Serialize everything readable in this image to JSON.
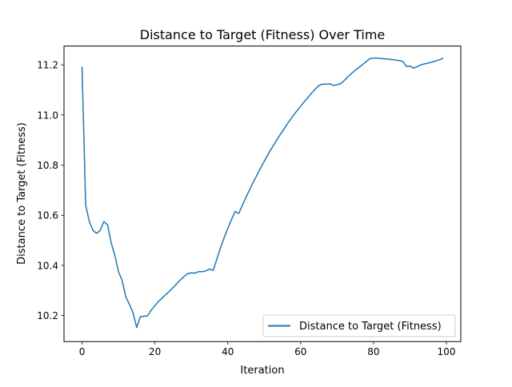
{
  "chart_data": {
    "type": "line",
    "title": "Distance to Target (Fitness) Over Time",
    "xlabel": "Iteration",
    "ylabel": "Distance to Target (Fitness)",
    "xlim": [
      -4.95,
      103.95
    ],
    "ylim": [
      10.096,
      11.275
    ],
    "xticks": [
      0,
      20,
      40,
      60,
      80,
      100
    ],
    "xtick_labels": [
      "0",
      "20",
      "40",
      "60",
      "80",
      "100"
    ],
    "yticks": [
      10.2,
      10.4,
      10.6,
      10.8,
      11.0,
      11.2
    ],
    "ytick_labels": [
      "10.2",
      "10.4",
      "10.6",
      "10.8",
      "11.0",
      "11.2"
    ],
    "grid": false,
    "legend_position": "lower-right",
    "series": [
      {
        "name": "Distance to Target (Fitness)",
        "color": "#1f77b4",
        "x": [
          0,
          1,
          2,
          3,
          4,
          5,
          6,
          7,
          8,
          9,
          10,
          11,
          12,
          13,
          14,
          15,
          16,
          17,
          18,
          19,
          20,
          21,
          22,
          23,
          24,
          25,
          26,
          27,
          28,
          29,
          30,
          31,
          32,
          33,
          34,
          35,
          36,
          37,
          38,
          39,
          40,
          41,
          42,
          43,
          44,
          45,
          46,
          47,
          48,
          49,
          50,
          51,
          52,
          53,
          54,
          55,
          56,
          57,
          58,
          59,
          60,
          61,
          62,
          63,
          64,
          65,
          66,
          67,
          68,
          69,
          70,
          71,
          72,
          73,
          74,
          75,
          76,
          77,
          78,
          79,
          80,
          81,
          82,
          83,
          84,
          85,
          86,
          87,
          88,
          89,
          90,
          91,
          92,
          93,
          94,
          95,
          96,
          97,
          98,
          99
        ],
        "y": [
          11.19,
          10.64,
          10.575,
          10.54,
          10.528,
          10.54,
          10.575,
          10.562,
          10.49,
          10.44,
          10.375,
          10.34,
          10.275,
          10.245,
          10.21,
          10.152,
          10.195,
          10.197,
          10.199,
          10.222,
          10.24,
          10.256,
          10.27,
          10.284,
          10.297,
          10.312,
          10.327,
          10.342,
          10.356,
          10.367,
          10.37,
          10.369,
          10.375,
          10.375,
          10.378,
          10.385,
          10.38,
          10.425,
          10.47,
          10.51,
          10.548,
          10.582,
          10.615,
          10.607,
          10.64,
          10.672,
          10.702,
          10.732,
          10.76,
          10.788,
          10.815,
          10.842,
          10.866,
          10.89,
          10.913,
          10.935,
          10.957,
          10.978,
          10.998,
          11.017,
          11.035,
          11.053,
          11.07,
          11.087,
          11.103,
          11.118,
          11.123,
          11.123,
          11.124,
          11.118,
          11.121,
          11.125,
          11.138,
          11.153,
          11.166,
          11.179,
          11.19,
          11.201,
          11.213,
          11.225,
          11.227,
          11.227,
          11.225,
          11.224,
          11.223,
          11.221,
          11.219,
          11.217,
          11.214,
          11.194,
          11.195,
          11.187,
          11.193,
          11.2,
          11.204,
          11.207,
          11.211,
          11.215,
          11.22,
          11.226
        ]
      }
    ]
  }
}
